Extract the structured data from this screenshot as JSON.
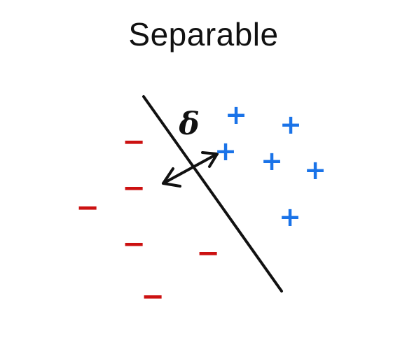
{
  "title": "Separable",
  "colors": {
    "positive": "#1a73e8",
    "negative": "#cc1111",
    "line": "#111111"
  },
  "margin_symbol": "δ",
  "positive_symbol": "+",
  "negative_symbol": "−",
  "positive_points": [
    {
      "label": "+"
    },
    {
      "label": "+"
    },
    {
      "label": "+"
    },
    {
      "label": "+"
    },
    {
      "label": "+"
    },
    {
      "label": "+"
    },
    {
      "label": "+"
    }
  ],
  "negative_points": [
    {
      "label": "−"
    },
    {
      "label": "−"
    },
    {
      "label": "−"
    },
    {
      "label": "−"
    },
    {
      "label": "−"
    },
    {
      "label": "−"
    }
  ]
}
